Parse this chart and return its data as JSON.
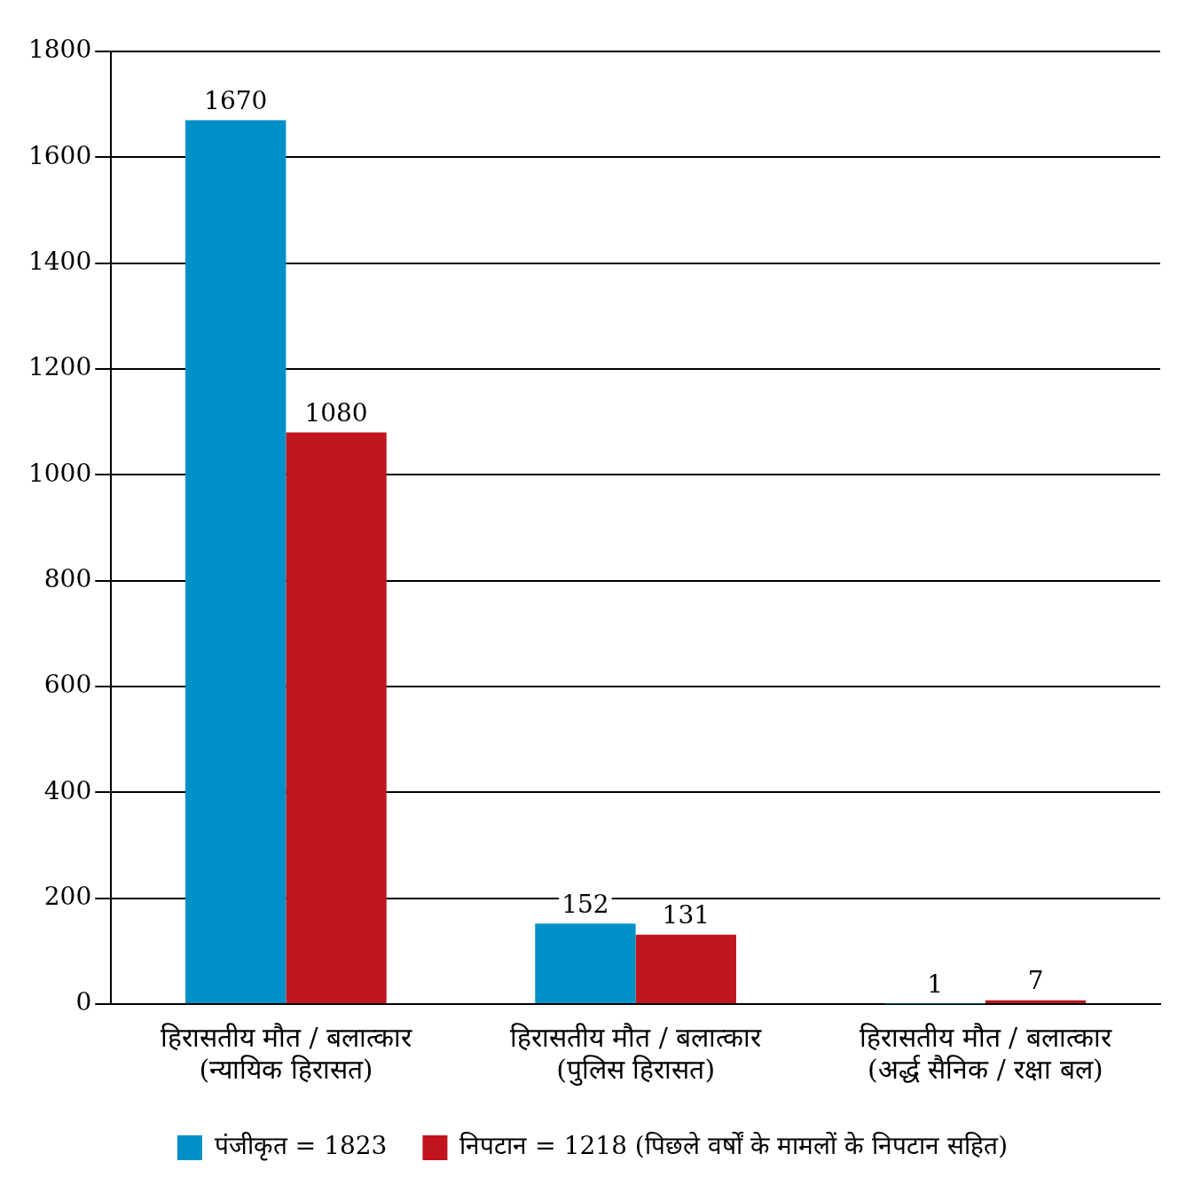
{
  "chart_data": {
    "type": "bar",
    "categories": [
      "हिरासतीय मौत / बलात्कार\n(न्यायिक हिरासत)",
      "हिरासतीय मौत / बलात्कार\n(पुलिस हिरासत)",
      "हिरासतीय मौत / बलात्कार\n(अर्द्ध सैनिक / रक्षा बल)"
    ],
    "series": [
      {
        "name": "पंजीकृत = 1823",
        "color": "#0090c8",
        "values": [
          1670,
          152,
          1
        ]
      },
      {
        "name": "निपटान = 1218 (पिछले वर्षों के मामलों के निपटान सहित)",
        "color": "#c0151f",
        "values": [
          1080,
          131,
          7
        ]
      }
    ],
    "ylim": [
      0,
      1800
    ],
    "yticks": [
      0,
      200,
      400,
      600,
      800,
      1000,
      1200,
      1400,
      1600,
      1800
    ],
    "grid": "y",
    "legend": "bottom",
    "data_labels": true
  }
}
